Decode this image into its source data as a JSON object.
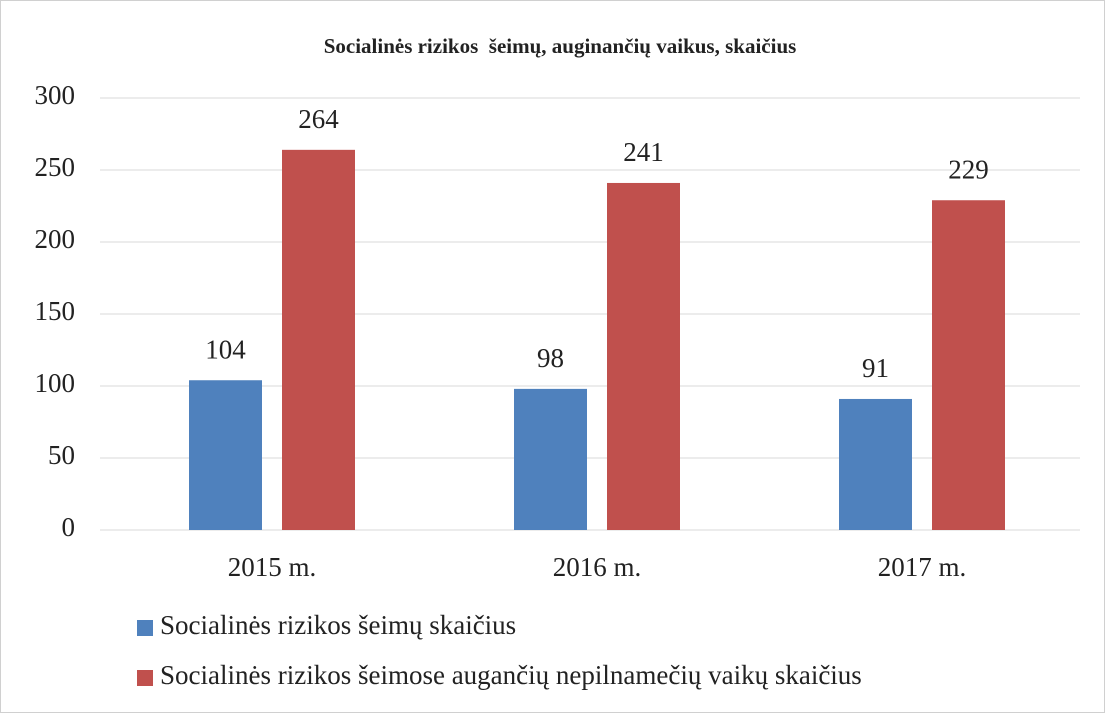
{
  "chart_data": {
    "type": "bar",
    "title": "Socialinės rizikos  šeimų, auginančių vaikus, skaičius",
    "categories": [
      "2015 m.",
      "2016 m.",
      "2017 m."
    ],
    "series": [
      {
        "name": "Socialinės rizikos šeimų skaičius",
        "color": "#4f81bd",
        "values": [
          104,
          98,
          91
        ]
      },
      {
        "name": "Socialinės rizikos šeimose augančių nepilnamečių vaikų skaičius",
        "color": "#c0504d",
        "values": [
          264,
          241,
          229
        ]
      }
    ],
    "ylim": [
      0,
      300
    ],
    "yticks": [
      0,
      50,
      100,
      150,
      200,
      250,
      300
    ],
    "grid": true,
    "legend": "bottom"
  }
}
